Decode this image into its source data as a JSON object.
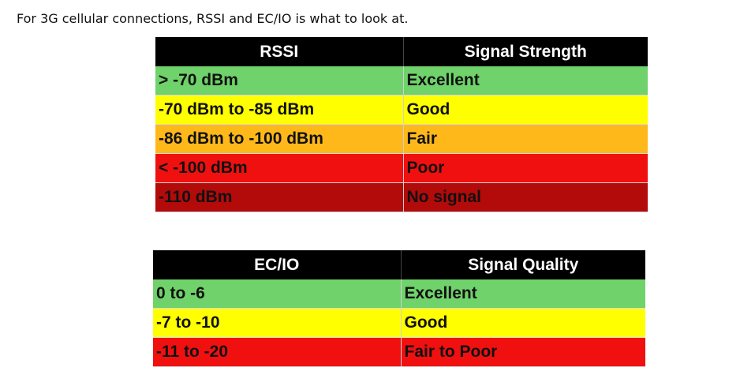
{
  "intro_text": "For 3G cellular connections, RSSI and EC/IO is what to look at.",
  "rssi_table": {
    "headers": [
      "RSSI",
      "Signal Strength"
    ],
    "rows": [
      {
        "range": "> -70 dBm",
        "rating": "Excellent",
        "color": "#6fd26a"
      },
      {
        "range": "-70 dBm to -85 dBm",
        "rating": "Good",
        "color": "#ffff00"
      },
      {
        "range": "-86 dBm to -100 dBm",
        "rating": "Fair",
        "color": "#ffb81a"
      },
      {
        "range": "< -100 dBm",
        "rating": "Poor",
        "color": "#f01010"
      },
      {
        "range": "-110 dBm",
        "rating": "No signal",
        "color": "#b30a0a"
      }
    ]
  },
  "ecio_table": {
    "headers": [
      "EC/IO",
      "Signal Quality"
    ],
    "rows": [
      {
        "range": "0 to -6",
        "rating": "Excellent",
        "color": "#6fd26a"
      },
      {
        "range": "-7 to -10",
        "rating": "Good",
        "color": "#ffff00"
      },
      {
        "range": "-11 to -20",
        "rating": "Fair to Poor",
        "color": "#f01010"
      }
    ]
  }
}
